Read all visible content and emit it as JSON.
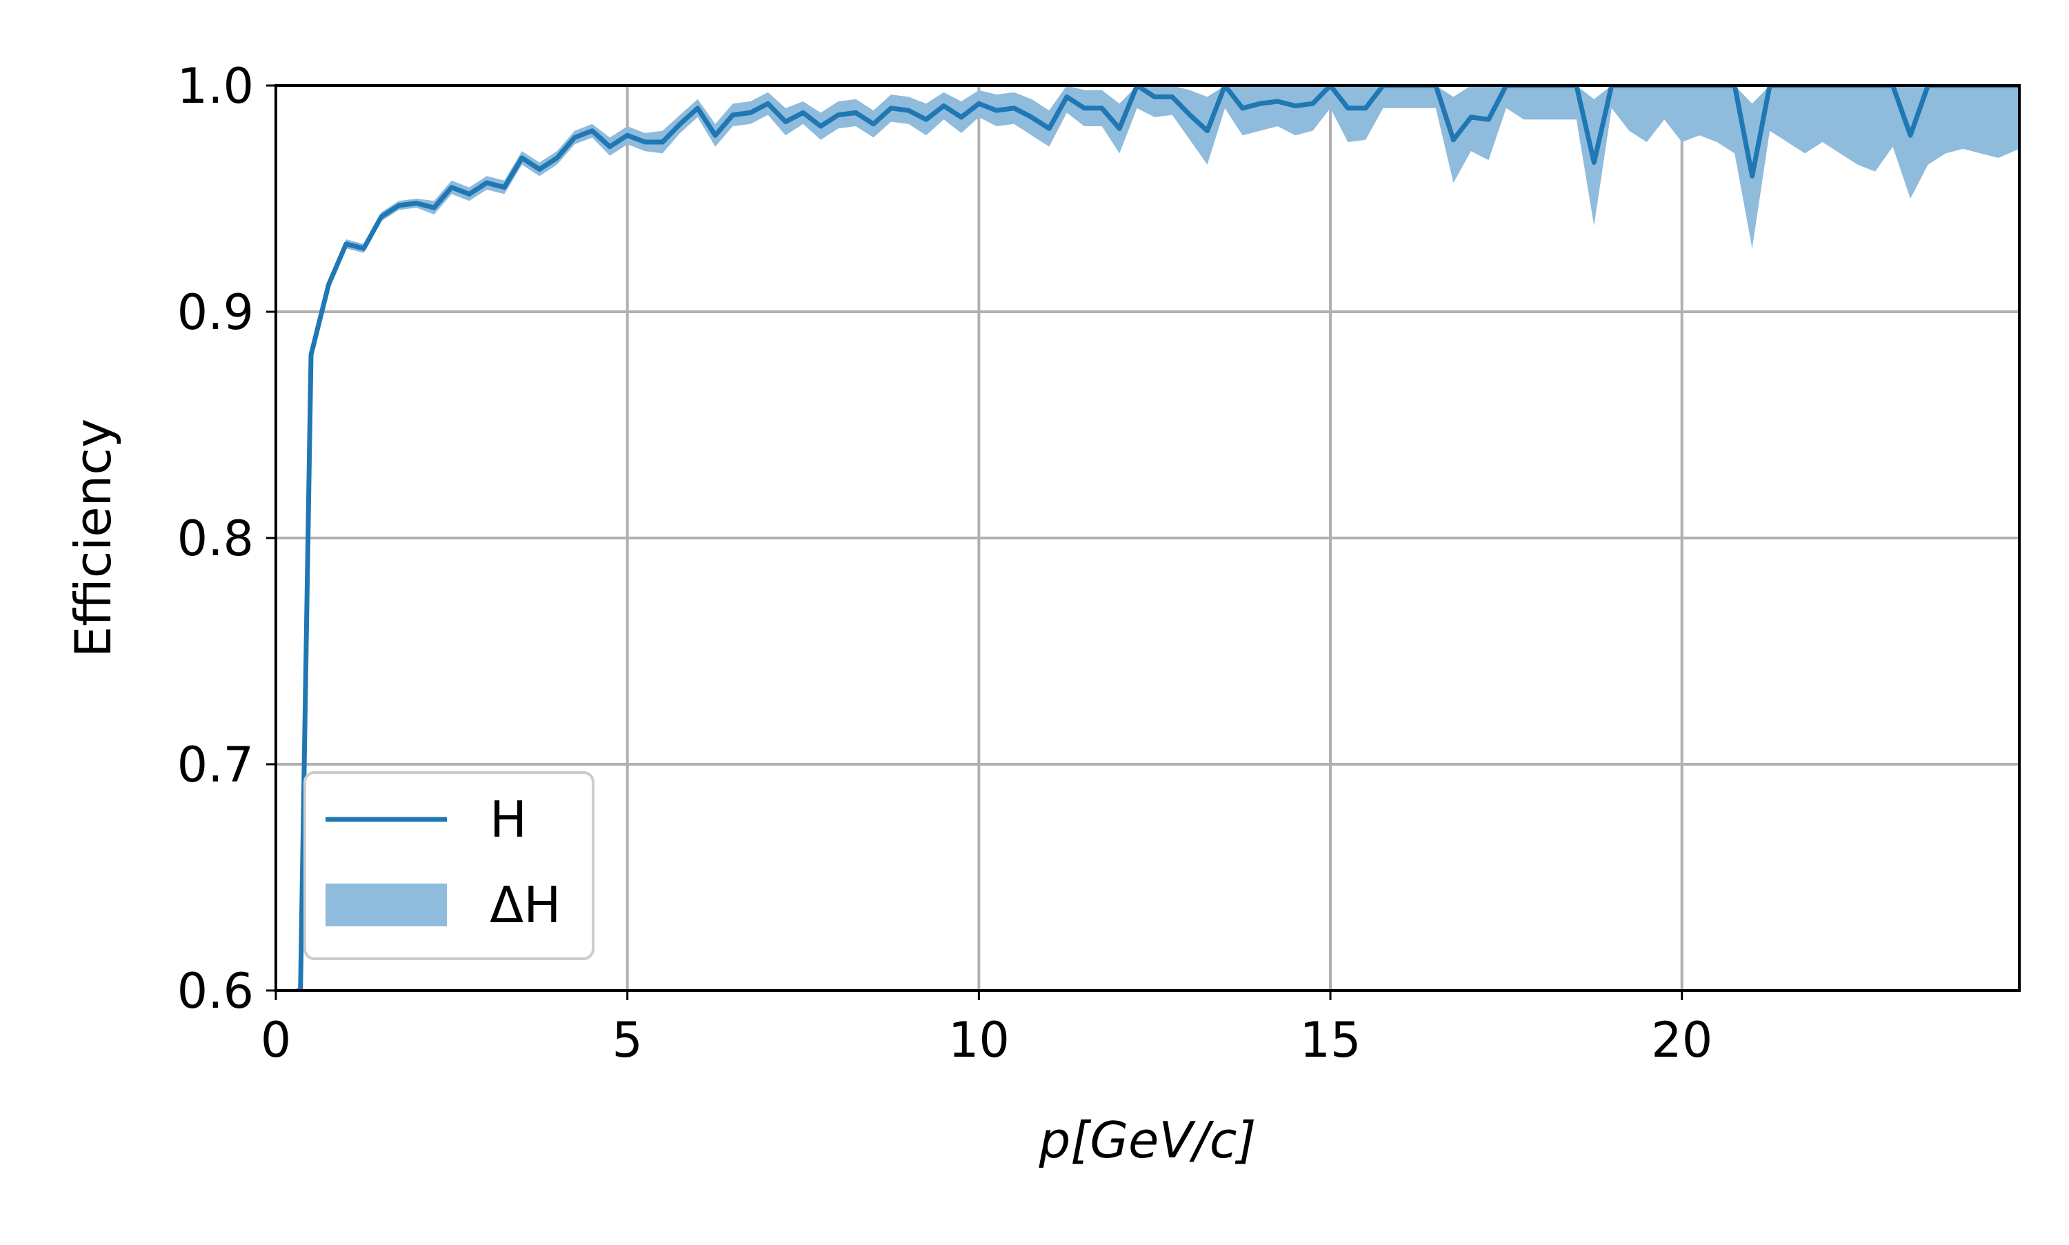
{
  "chart_data": {
    "type": "line",
    "xlabel": "p[GeV/c]",
    "ylabel": "Efficiency",
    "xlim": [
      0,
      24.8
    ],
    "ylim": [
      0.6,
      1.0
    ],
    "xticks": [
      0,
      5,
      10,
      15,
      20
    ],
    "xtick_labels": [
      "0",
      "5",
      "10",
      "15",
      "20"
    ],
    "yticks": [
      0.6,
      0.7,
      0.8,
      0.9,
      1.0
    ],
    "ytick_labels": [
      "0.6",
      "0.7",
      "0.8",
      "0.9",
      "1.0"
    ],
    "grid": true,
    "legend_position": "lower-left",
    "colors": {
      "line": "#1f77b4",
      "band": "#8fbbdc",
      "grid": "#b0b0b0"
    },
    "series": [
      {
        "name": "H",
        "kind": "line",
        "x": [
          0.3,
          0.35,
          0.5,
          0.75,
          1.0,
          1.25,
          1.5,
          1.75,
          2.0,
          2.25,
          2.5,
          2.75,
          3.0,
          3.25,
          3.5,
          3.75,
          4.0,
          4.25,
          4.5,
          4.75,
          5.0,
          5.25,
          5.5,
          5.75,
          6.0,
          6.25,
          6.5,
          6.75,
          7.0,
          7.25,
          7.5,
          7.75,
          8.0,
          8.25,
          8.5,
          8.75,
          9.0,
          9.25,
          9.5,
          9.75,
          10.0,
          10.25,
          10.5,
          10.75,
          11.0,
          11.25,
          11.5,
          11.75,
          12.0,
          12.25,
          12.5,
          12.75,
          13.0,
          13.25,
          13.5,
          13.75,
          14.0,
          14.25,
          14.5,
          14.75,
          15.0,
          15.25,
          15.5,
          15.75,
          16.0,
          16.25,
          16.5,
          16.75,
          17.0,
          17.25,
          17.5,
          17.75,
          18.0,
          18.25,
          18.5,
          18.75,
          19.0,
          19.25,
          19.5,
          19.75,
          20.0,
          20.25,
          20.5,
          20.75,
          21.0,
          21.25,
          21.5,
          21.75,
          22.0,
          22.25,
          22.5,
          22.75,
          23.0,
          23.25,
          23.5,
          23.75,
          24.0,
          24.25,
          24.5,
          24.8
        ],
        "y": [
          0.6,
          0.6,
          0.881,
          0.912,
          0.93,
          0.928,
          0.942,
          0.947,
          0.948,
          0.946,
          0.955,
          0.952,
          0.957,
          0.955,
          0.968,
          0.963,
          0.968,
          0.977,
          0.98,
          0.973,
          0.978,
          0.975,
          0.975,
          0.983,
          0.99,
          0.978,
          0.987,
          0.988,
          0.992,
          0.984,
          0.988,
          0.982,
          0.987,
          0.988,
          0.983,
          0.99,
          0.989,
          0.985,
          0.991,
          0.986,
          0.992,
          0.989,
          0.99,
          0.986,
          0.981,
          0.995,
          0.99,
          0.99,
          0.981,
          1.0,
          0.995,
          0.995,
          0.987,
          0.98,
          1.0,
          0.99,
          0.992,
          0.993,
          0.991,
          0.992,
          1.0,
          0.99,
          0.99,
          1.0,
          1.0,
          1.0,
          1.0,
          0.976,
          0.986,
          0.985,
          1.0,
          1.0,
          1.0,
          1.0,
          1.0,
          0.966,
          1.0,
          1.0,
          1.0,
          1.0,
          1.0,
          1.0,
          1.0,
          1.0,
          0.96,
          1.0,
          1.0,
          1.0,
          1.0,
          1.0,
          1.0,
          1.0,
          1.0,
          0.978,
          1.0,
          1.0,
          1.0,
          1.0,
          1.0,
          1.0
        ]
      },
      {
        "name": "ΔH",
        "kind": "band",
        "x": [
          0.3,
          0.35,
          0.5,
          0.75,
          1.0,
          1.25,
          1.5,
          1.75,
          2.0,
          2.25,
          2.5,
          2.75,
          3.0,
          3.25,
          3.5,
          3.75,
          4.0,
          4.25,
          4.5,
          4.75,
          5.0,
          5.25,
          5.5,
          5.75,
          6.0,
          6.25,
          6.5,
          6.75,
          7.0,
          7.25,
          7.5,
          7.75,
          8.0,
          8.25,
          8.5,
          8.75,
          9.0,
          9.25,
          9.5,
          9.75,
          10.0,
          10.25,
          10.5,
          10.75,
          11.0,
          11.25,
          11.5,
          11.75,
          12.0,
          12.25,
          12.5,
          12.75,
          13.0,
          13.25,
          13.5,
          13.75,
          14.0,
          14.25,
          14.5,
          14.75,
          15.0,
          15.25,
          15.5,
          15.75,
          16.0,
          16.25,
          16.5,
          16.75,
          17.0,
          17.25,
          17.5,
          17.75,
          18.0,
          18.25,
          18.5,
          18.75,
          19.0,
          19.25,
          19.5,
          19.75,
          20.0,
          20.25,
          20.5,
          20.75,
          21.0,
          21.25,
          21.5,
          21.75,
          22.0,
          22.25,
          22.5,
          22.75,
          23.0,
          23.25,
          23.5,
          23.75,
          24.0,
          24.25,
          24.5,
          24.8
        ],
        "lower": [
          0.6,
          0.6,
          0.879,
          0.91,
          0.928,
          0.926,
          0.94,
          0.945,
          0.946,
          0.943,
          0.952,
          0.949,
          0.954,
          0.952,
          0.965,
          0.96,
          0.965,
          0.974,
          0.977,
          0.969,
          0.974,
          0.971,
          0.97,
          0.979,
          0.986,
          0.973,
          0.982,
          0.983,
          0.987,
          0.978,
          0.983,
          0.976,
          0.981,
          0.982,
          0.977,
          0.984,
          0.983,
          0.978,
          0.985,
          0.979,
          0.986,
          0.982,
          0.983,
          0.978,
          0.973,
          0.988,
          0.982,
          0.982,
          0.97,
          0.99,
          0.986,
          0.987,
          0.976,
          0.965,
          0.99,
          0.978,
          0.98,
          0.982,
          0.978,
          0.98,
          0.99,
          0.975,
          0.976,
          0.99,
          0.99,
          0.99,
          0.99,
          0.957,
          0.971,
          0.967,
          0.99,
          0.985,
          0.985,
          0.985,
          0.985,
          0.938,
          0.99,
          0.98,
          0.975,
          0.985,
          0.975,
          0.978,
          0.975,
          0.97,
          0.928,
          0.98,
          0.975,
          0.97,
          0.975,
          0.97,
          0.965,
          0.962,
          0.973,
          0.95,
          0.965,
          0.97,
          0.972,
          0.97,
          0.968,
          0.972
        ],
        "upper": [
          0.6,
          0.6,
          0.883,
          0.914,
          0.932,
          0.93,
          0.944,
          0.949,
          0.95,
          0.949,
          0.958,
          0.955,
          0.96,
          0.958,
          0.971,
          0.966,
          0.971,
          0.98,
          0.983,
          0.977,
          0.982,
          0.979,
          0.98,
          0.987,
          0.994,
          0.983,
          0.992,
          0.993,
          0.997,
          0.99,
          0.993,
          0.988,
          0.993,
          0.994,
          0.989,
          0.996,
          0.995,
          0.992,
          0.997,
          0.993,
          0.998,
          0.996,
          0.997,
          0.994,
          0.989,
          1.0,
          0.998,
          0.998,
          0.992,
          1.0,
          1.0,
          1.0,
          0.998,
          0.995,
          1.0,
          1.0,
          1.0,
          1.0,
          1.0,
          1.0,
          1.0,
          1.0,
          1.0,
          1.0,
          1.0,
          1.0,
          1.0,
          0.995,
          1.0,
          1.0,
          1.0,
          1.0,
          1.0,
          1.0,
          1.0,
          0.994,
          1.0,
          1.0,
          1.0,
          1.0,
          1.0,
          1.0,
          1.0,
          1.0,
          0.992,
          1.0,
          1.0,
          1.0,
          1.0,
          1.0,
          1.0,
          1.0,
          1.0,
          1.0,
          1.0,
          1.0,
          1.0,
          1.0,
          1.0,
          1.0
        ]
      }
    ]
  }
}
